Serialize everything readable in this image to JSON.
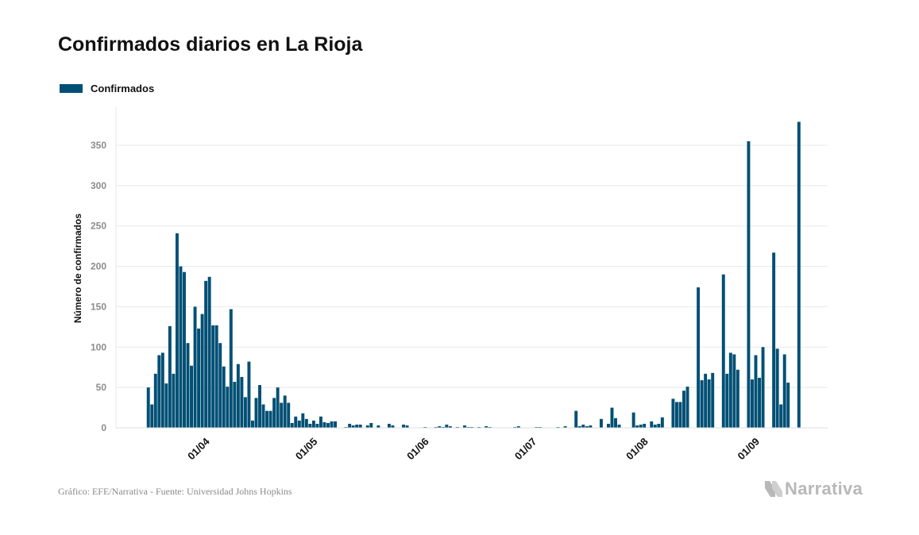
{
  "title": "Confirmados diarios en La Rioja",
  "legend": {
    "label": "Confirmados"
  },
  "footer": {
    "source": "Gráfico: EFE/Narrativa - Fuente: Universidad Johns Hopkins",
    "brand": "Narrativa"
  },
  "colors": {
    "bar": "#004f74",
    "grid": "#e8e8e8",
    "axis_text": "#8c8c8c",
    "brand": "#b8b8b8"
  },
  "chart_data": {
    "type": "bar",
    "title": "Confirmados diarios en La Rioja",
    "ylabel": "Número de confirmados",
    "xlabel": "",
    "ylim": [
      0,
      390
    ],
    "yticks": [
      0,
      50,
      100,
      150,
      200,
      250,
      300,
      350
    ],
    "x_start": "2020-03-08",
    "x_end": "2020-09-22",
    "xtick_labels": [
      {
        "date": "2020-04-01",
        "label": "01/04"
      },
      {
        "date": "2020-05-01",
        "label": "01/05"
      },
      {
        "date": "2020-06-01",
        "label": "01/06"
      },
      {
        "date": "2020-07-01",
        "label": "01/07"
      },
      {
        "date": "2020-08-01",
        "label": "01/08"
      },
      {
        "date": "2020-09-01",
        "label": "01/09"
      }
    ],
    "grid": true,
    "legend_position": "top-left",
    "series": [
      {
        "name": "Confirmados",
        "points": [
          [
            "2020-03-17",
            50
          ],
          [
            "2020-03-18",
            29
          ],
          [
            "2020-03-19",
            67
          ],
          [
            "2020-03-20",
            90
          ],
          [
            "2020-03-21",
            93
          ],
          [
            "2020-03-22",
            55
          ],
          [
            "2020-03-23",
            126
          ],
          [
            "2020-03-24",
            67
          ],
          [
            "2020-03-25",
            241
          ],
          [
            "2020-03-26",
            200
          ],
          [
            "2020-03-27",
            193
          ],
          [
            "2020-03-28",
            105
          ],
          [
            "2020-03-29",
            77
          ],
          [
            "2020-03-30",
            150
          ],
          [
            "2020-03-31",
            123
          ],
          [
            "2020-04-01",
            141
          ],
          [
            "2020-04-02",
            182
          ],
          [
            "2020-04-03",
            187
          ],
          [
            "2020-04-04",
            127
          ],
          [
            "2020-04-05",
            127
          ],
          [
            "2020-04-06",
            105
          ],
          [
            "2020-04-07",
            76
          ],
          [
            "2020-04-08",
            51
          ],
          [
            "2020-04-09",
            147
          ],
          [
            "2020-04-10",
            57
          ],
          [
            "2020-04-11",
            79
          ],
          [
            "2020-04-12",
            63
          ],
          [
            "2020-04-13",
            38
          ],
          [
            "2020-04-14",
            82
          ],
          [
            "2020-04-15",
            9
          ],
          [
            "2020-04-16",
            37
          ],
          [
            "2020-04-17",
            53
          ],
          [
            "2020-04-18",
            29
          ],
          [
            "2020-04-19",
            21
          ],
          [
            "2020-04-20",
            21
          ],
          [
            "2020-04-21",
            37
          ],
          [
            "2020-04-22",
            50
          ],
          [
            "2020-04-23",
            31
          ],
          [
            "2020-04-24",
            40
          ],
          [
            "2020-04-25",
            31
          ],
          [
            "2020-04-26",
            6
          ],
          [
            "2020-04-27",
            14
          ],
          [
            "2020-04-28",
            9
          ],
          [
            "2020-04-29",
            18
          ],
          [
            "2020-04-30",
            11
          ],
          [
            "2020-05-01",
            5
          ],
          [
            "2020-05-02",
            9
          ],
          [
            "2020-05-03",
            5
          ],
          [
            "2020-05-04",
            14
          ],
          [
            "2020-05-05",
            7
          ],
          [
            "2020-05-06",
            6
          ],
          [
            "2020-05-07",
            8
          ],
          [
            "2020-05-08",
            8
          ],
          [
            "2020-05-11",
            1
          ],
          [
            "2020-05-12",
            5
          ],
          [
            "2020-05-13",
            3
          ],
          [
            "2020-05-14",
            4
          ],
          [
            "2020-05-15",
            4
          ],
          [
            "2020-05-17",
            3
          ],
          [
            "2020-05-18",
            6
          ],
          [
            "2020-05-20",
            3
          ],
          [
            "2020-05-23",
            5
          ],
          [
            "2020-05-24",
            3
          ],
          [
            "2020-05-27",
            4
          ],
          [
            "2020-05-28",
            3
          ],
          [
            "2020-06-02",
            1
          ],
          [
            "2020-06-05",
            1
          ],
          [
            "2020-06-06",
            2
          ],
          [
            "2020-06-07",
            1
          ],
          [
            "2020-06-08",
            4
          ],
          [
            "2020-06-09",
            2
          ],
          [
            "2020-06-11",
            1
          ],
          [
            "2020-06-13",
            3
          ],
          [
            "2020-06-14",
            1
          ],
          [
            "2020-06-15",
            1
          ],
          [
            "2020-06-17",
            1
          ],
          [
            "2020-06-19",
            2
          ],
          [
            "2020-06-20",
            1
          ],
          [
            "2020-06-27",
            1
          ],
          [
            "2020-06-28",
            2
          ],
          [
            "2020-07-03",
            1
          ],
          [
            "2020-07-04",
            1
          ],
          [
            "2020-07-09",
            1
          ],
          [
            "2020-07-11",
            2
          ],
          [
            "2020-07-14",
            21
          ],
          [
            "2020-07-15",
            2
          ],
          [
            "2020-07-16",
            4
          ],
          [
            "2020-07-17",
            2
          ],
          [
            "2020-07-18",
            3
          ],
          [
            "2020-07-21",
            11
          ],
          [
            "2020-07-23",
            5
          ],
          [
            "2020-07-24",
            25
          ],
          [
            "2020-07-25",
            12
          ],
          [
            "2020-07-26",
            4
          ],
          [
            "2020-07-30",
            19
          ],
          [
            "2020-07-31",
            3
          ],
          [
            "2020-08-01",
            4
          ],
          [
            "2020-08-02",
            5
          ],
          [
            "2020-08-04",
            8
          ],
          [
            "2020-08-05",
            4
          ],
          [
            "2020-08-06",
            5
          ],
          [
            "2020-08-07",
            13
          ],
          [
            "2020-08-10",
            36
          ],
          [
            "2020-08-11",
            32
          ],
          [
            "2020-08-12",
            32
          ],
          [
            "2020-08-13",
            46
          ],
          [
            "2020-08-14",
            51
          ],
          [
            "2020-08-17",
            174
          ],
          [
            "2020-08-18",
            59
          ],
          [
            "2020-08-19",
            67
          ],
          [
            "2020-08-20",
            60
          ],
          [
            "2020-08-21",
            68
          ],
          [
            "2020-08-24",
            190
          ],
          [
            "2020-08-25",
            67
          ],
          [
            "2020-08-26",
            93
          ],
          [
            "2020-08-27",
            91
          ],
          [
            "2020-08-28",
            72
          ],
          [
            "2020-08-31",
            355
          ],
          [
            "2020-09-01",
            60
          ],
          [
            "2020-09-02",
            90
          ],
          [
            "2020-09-03",
            62
          ],
          [
            "2020-09-04",
            100
          ],
          [
            "2020-09-07",
            217
          ],
          [
            "2020-09-08",
            98
          ],
          [
            "2020-09-09",
            29
          ],
          [
            "2020-09-10",
            91
          ],
          [
            "2020-09-11",
            56
          ],
          [
            "2020-09-14",
            379
          ]
        ]
      }
    ]
  }
}
